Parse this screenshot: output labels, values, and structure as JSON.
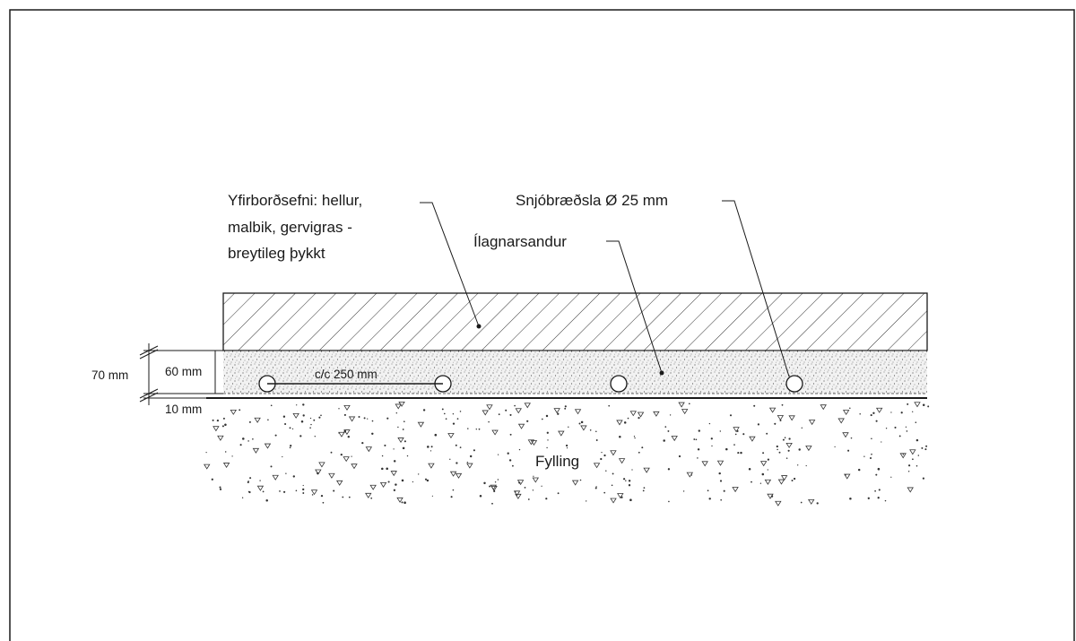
{
  "labels": {
    "surface": [
      "Yfirborðsefni: hellur,",
      "malbik, gervigras -",
      "breytileg þykkt"
    ],
    "snow_melting": "Snjóbræðsla Ø 25 mm",
    "bedding_sand": "Ílagnarsandur",
    "fill": "Fylling",
    "spacing": "c/c 250 mm"
  },
  "dimensions": {
    "total": "70 mm",
    "sand_layer": "60 mm",
    "bottom_layer": "10 mm"
  }
}
